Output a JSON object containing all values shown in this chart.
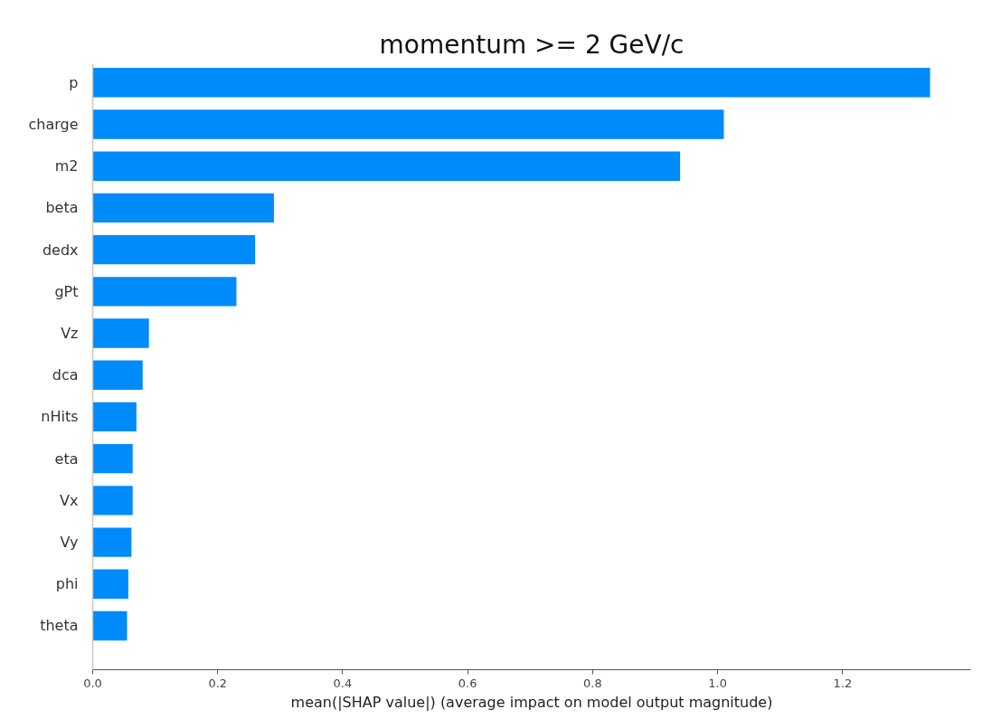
{
  "chart_data": {
    "type": "bar",
    "orientation": "horizontal",
    "title": "momentum >= 2 GeV/c",
    "xlabel": "mean(|SHAP value|) (average impact on model output magnitude)",
    "categories": [
      "p",
      "charge",
      "m2",
      "beta",
      "dedx",
      "gPt",
      "Vz",
      "dca",
      "nHits",
      "eta",
      "Vx",
      "Vy",
      "phi",
      "theta"
    ],
    "values": [
      1.34,
      1.01,
      0.94,
      0.29,
      0.26,
      0.23,
      0.09,
      0.08,
      0.07,
      0.064,
      0.064,
      0.062,
      0.057,
      0.055
    ],
    "color": "#008bfb",
    "xlim": [
      0,
      1.405
    ],
    "xticks": [
      {
        "value": 0,
        "label": "0.0"
      },
      0.2,
      0.4,
      0.6,
      0.8,
      {
        "value": 1,
        "label": "1.0"
      },
      1.2
    ]
  }
}
